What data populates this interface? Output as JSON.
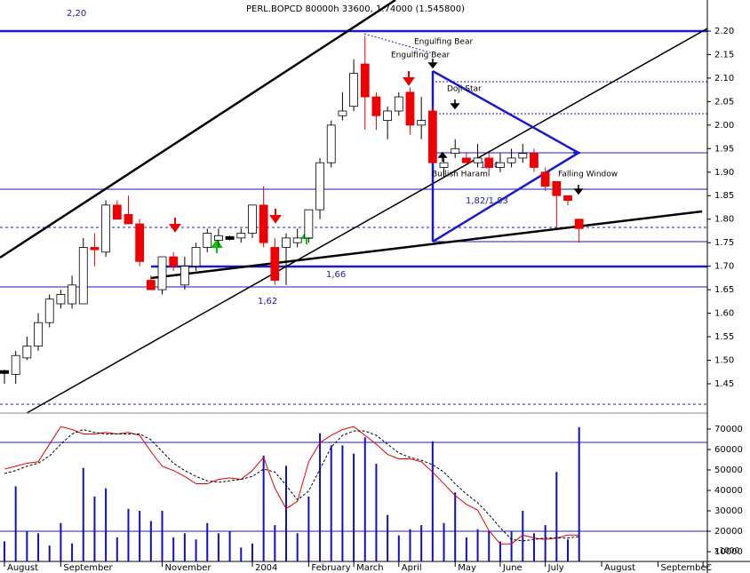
{
  "chart_data": {
    "type": "candlestick",
    "title": "PERL.BOPCD 80000h 33600, 1.74000 (1.545800)",
    "annotations": [
      "2,20",
      "1,66",
      "1,62",
      "1,90",
      "1,82/1,83",
      "Engulfing Bear",
      "Engulfing Bear",
      "Doji Star",
      "Bullish Harami",
      "Falling Window",
      "x1000"
    ],
    "categories": [
      "August",
      null,
      null,
      null,
      null,
      "September",
      null,
      null,
      null,
      null,
      null,
      null,
      null,
      null,
      "November",
      null,
      null,
      null,
      null,
      null,
      null,
      null,
      "2004",
      null,
      null,
      null,
      null,
      "February",
      null,
      null,
      null,
      "March",
      null,
      null,
      null,
      "April",
      null,
      null,
      null,
      null,
      "May",
      null,
      null,
      null,
      "June",
      null,
      null,
      null,
      "July",
      null,
      null,
      null,
      null,
      "August",
      null,
      null,
      null,
      null,
      "September",
      null,
      null,
      null,
      "C"
    ],
    "open": [
      1.475,
      1.47,
      1.505,
      1.53,
      1.58,
      1.62,
      1.62,
      1.62,
      1.74,
      1.73,
      1.83,
      1.81,
      1.79,
      1.67,
      1.65,
      1.72,
      1.66,
      1.7,
      1.74,
      1.755,
      1.76,
      1.76,
      1.77,
      1.83,
      1.74,
      1.74,
      1.75,
      1.76,
      1.82,
      1.92,
      2.02,
      2.04,
      2.13,
      2.06,
      2.01,
      2.03,
      2.07,
      2.0,
      2.03,
      1.91,
      1.94,
      1.93,
      1.92,
      1.93,
      1.91,
      1.92,
      1.93,
      1.94,
      1.9,
      1.88,
      1.85,
      1.8,
      null,
      null,
      null,
      null,
      null,
      null,
      null,
      null,
      null,
      null,
      null
    ],
    "high": [
      1.48,
      1.52,
      1.55,
      1.6,
      1.64,
      1.65,
      1.68,
      1.76,
      1.77,
      1.84,
      1.84,
      1.85,
      1.8,
      1.68,
      1.72,
      1.73,
      1.72,
      1.75,
      1.78,
      1.78,
      1.765,
      1.78,
      1.83,
      1.87,
      1.76,
      1.77,
      1.78,
      1.82,
      1.93,
      2.01,
      2.07,
      2.14,
      2.19,
      2.07,
      2.04,
      2.07,
      2.08,
      2.06,
      2.04,
      1.93,
      1.97,
      1.94,
      1.96,
      1.94,
      1.94,
      1.95,
      1.96,
      1.95,
      1.91,
      1.88,
      1.85,
      1.8,
      null,
      null,
      null,
      null,
      null,
      null,
      null,
      null,
      null,
      null,
      null
    ],
    "low": [
      1.45,
      1.45,
      1.5,
      1.52,
      1.57,
      1.61,
      1.61,
      1.62,
      1.7,
      1.72,
      1.8,
      1.79,
      1.7,
      1.65,
      1.64,
      1.69,
      1.65,
      1.69,
      1.73,
      1.74,
      1.755,
      1.75,
      1.76,
      1.74,
      1.66,
      1.66,
      1.74,
      1.75,
      1.8,
      1.91,
      2.01,
      2.03,
      1.99,
      1.99,
      1.97,
      2.02,
      1.98,
      1.97,
      1.92,
      1.89,
      1.93,
      1.92,
      1.91,
      1.9,
      1.9,
      1.91,
      1.92,
      1.9,
      1.86,
      1.78,
      1.83,
      1.75,
      null,
      null,
      null,
      null,
      null,
      null,
      null,
      null,
      null,
      null,
      null
    ],
    "close": [
      1.475,
      1.51,
      1.53,
      1.58,
      1.63,
      1.64,
      1.66,
      1.74,
      1.735,
      1.83,
      1.8,
      1.79,
      1.71,
      1.65,
      1.72,
      1.7,
      1.7,
      1.74,
      1.77,
      1.765,
      1.76,
      1.77,
      1.83,
      1.75,
      1.67,
      1.76,
      1.76,
      1.82,
      1.92,
      2.0,
      2.03,
      2.11,
      2.06,
      2.02,
      2.03,
      2.06,
      2.0,
      2.01,
      1.92,
      1.92,
      1.95,
      1.92,
      1.93,
      1.91,
      1.92,
      1.93,
      1.94,
      1.91,
      1.87,
      1.85,
      1.84,
      1.78,
      null,
      null,
      null,
      null,
      null,
      null,
      null,
      null,
      null,
      null,
      null
    ],
    "up_color": "#ffffff",
    "down_color": "#ee0000",
    "doji_color": "#000000",
    "volume": {
      "name": "Volume",
      "color": "#1010c0",
      "values": [
        15000,
        42000,
        20000,
        19000,
        13000,
        24000,
        14000,
        51000,
        37000,
        41000,
        17000,
        31000,
        30000,
        25000,
        30000,
        17000,
        19000,
        16000,
        24000,
        19000,
        20000,
        12000,
        14000,
        57000,
        23000,
        52000,
        19000,
        37000,
        68000,
        62000,
        62000,
        58000,
        66000,
        53000,
        28000,
        18000,
        21000,
        23000,
        64000,
        24000,
        39000,
        17000,
        21000,
        20000,
        15000,
        20000,
        30000,
        19000,
        23000,
        49000,
        16000,
        71000,
        null,
        null,
        null,
        null,
        null,
        null,
        null,
        null,
        null,
        null,
        null
      ]
    },
    "series": [
      {
        "name": "%K",
        "color": "#e00000",
        "axis": "y2",
        "values": [
          63,
          65,
          67,
          68,
          80,
          92,
          90,
          87,
          87,
          88,
          87,
          88,
          86,
          75,
          65,
          62,
          58,
          53,
          53,
          56,
          57,
          56,
          62,
          71,
          50,
          36,
          41,
          68,
          81,
          86,
          90,
          92,
          86,
          80,
          73,
          70,
          70,
          68,
          61,
          53,
          45,
          39,
          35,
          21,
          12,
          12,
          18,
          16,
          15,
          16,
          18,
          18,
          null,
          null,
          null,
          null,
          null,
          null,
          null,
          null,
          null,
          null,
          null
        ]
      },
      {
        "name": "%D",
        "color": "#000000",
        "axis": "y2",
        "values": [
          60,
          62,
          65,
          67,
          72,
          80,
          87,
          90,
          88,
          87,
          87,
          87,
          87,
          83,
          75,
          67,
          62,
          58,
          55,
          54,
          55,
          56,
          58,
          63,
          61,
          52,
          42,
          48,
          63,
          78,
          86,
          89,
          89,
          86,
          80,
          74,
          71,
          69,
          66,
          61,
          53,
          46,
          40,
          32,
          23,
          15,
          14,
          15,
          16,
          16,
          16,
          17,
          null,
          null,
          null,
          null,
          null,
          null,
          null,
          null,
          null,
          null,
          null
        ]
      }
    ],
    "ylim": [
      1.3876,
      2.2661
    ],
    "yticks": [
      {
        "value": 2.2,
        "label": "2.20"
      },
      2.15,
      {
        "value": 2.1,
        "label": "2.10"
      },
      2.05,
      {
        "value": 2,
        "label": "2.00"
      },
      1.95,
      {
        "value": 1.9,
        "label": "1.90"
      },
      1.85,
      {
        "value": 1.8,
        "label": "1.80"
      },
      1.75,
      {
        "value": 1.7,
        "label": "1.70"
      },
      1.65,
      {
        "value": 1.6,
        "label": "1.60"
      },
      1.55,
      {
        "value": 1.5,
        "label": "1.50"
      },
      1.45
    ],
    "vlim": [
      5217,
      76957
    ],
    "vticks": [
      70000,
      60000,
      50000,
      40000,
      30000,
      20000,
      10000
    ],
    "y2lim": [
      0,
      100
    ]
  }
}
